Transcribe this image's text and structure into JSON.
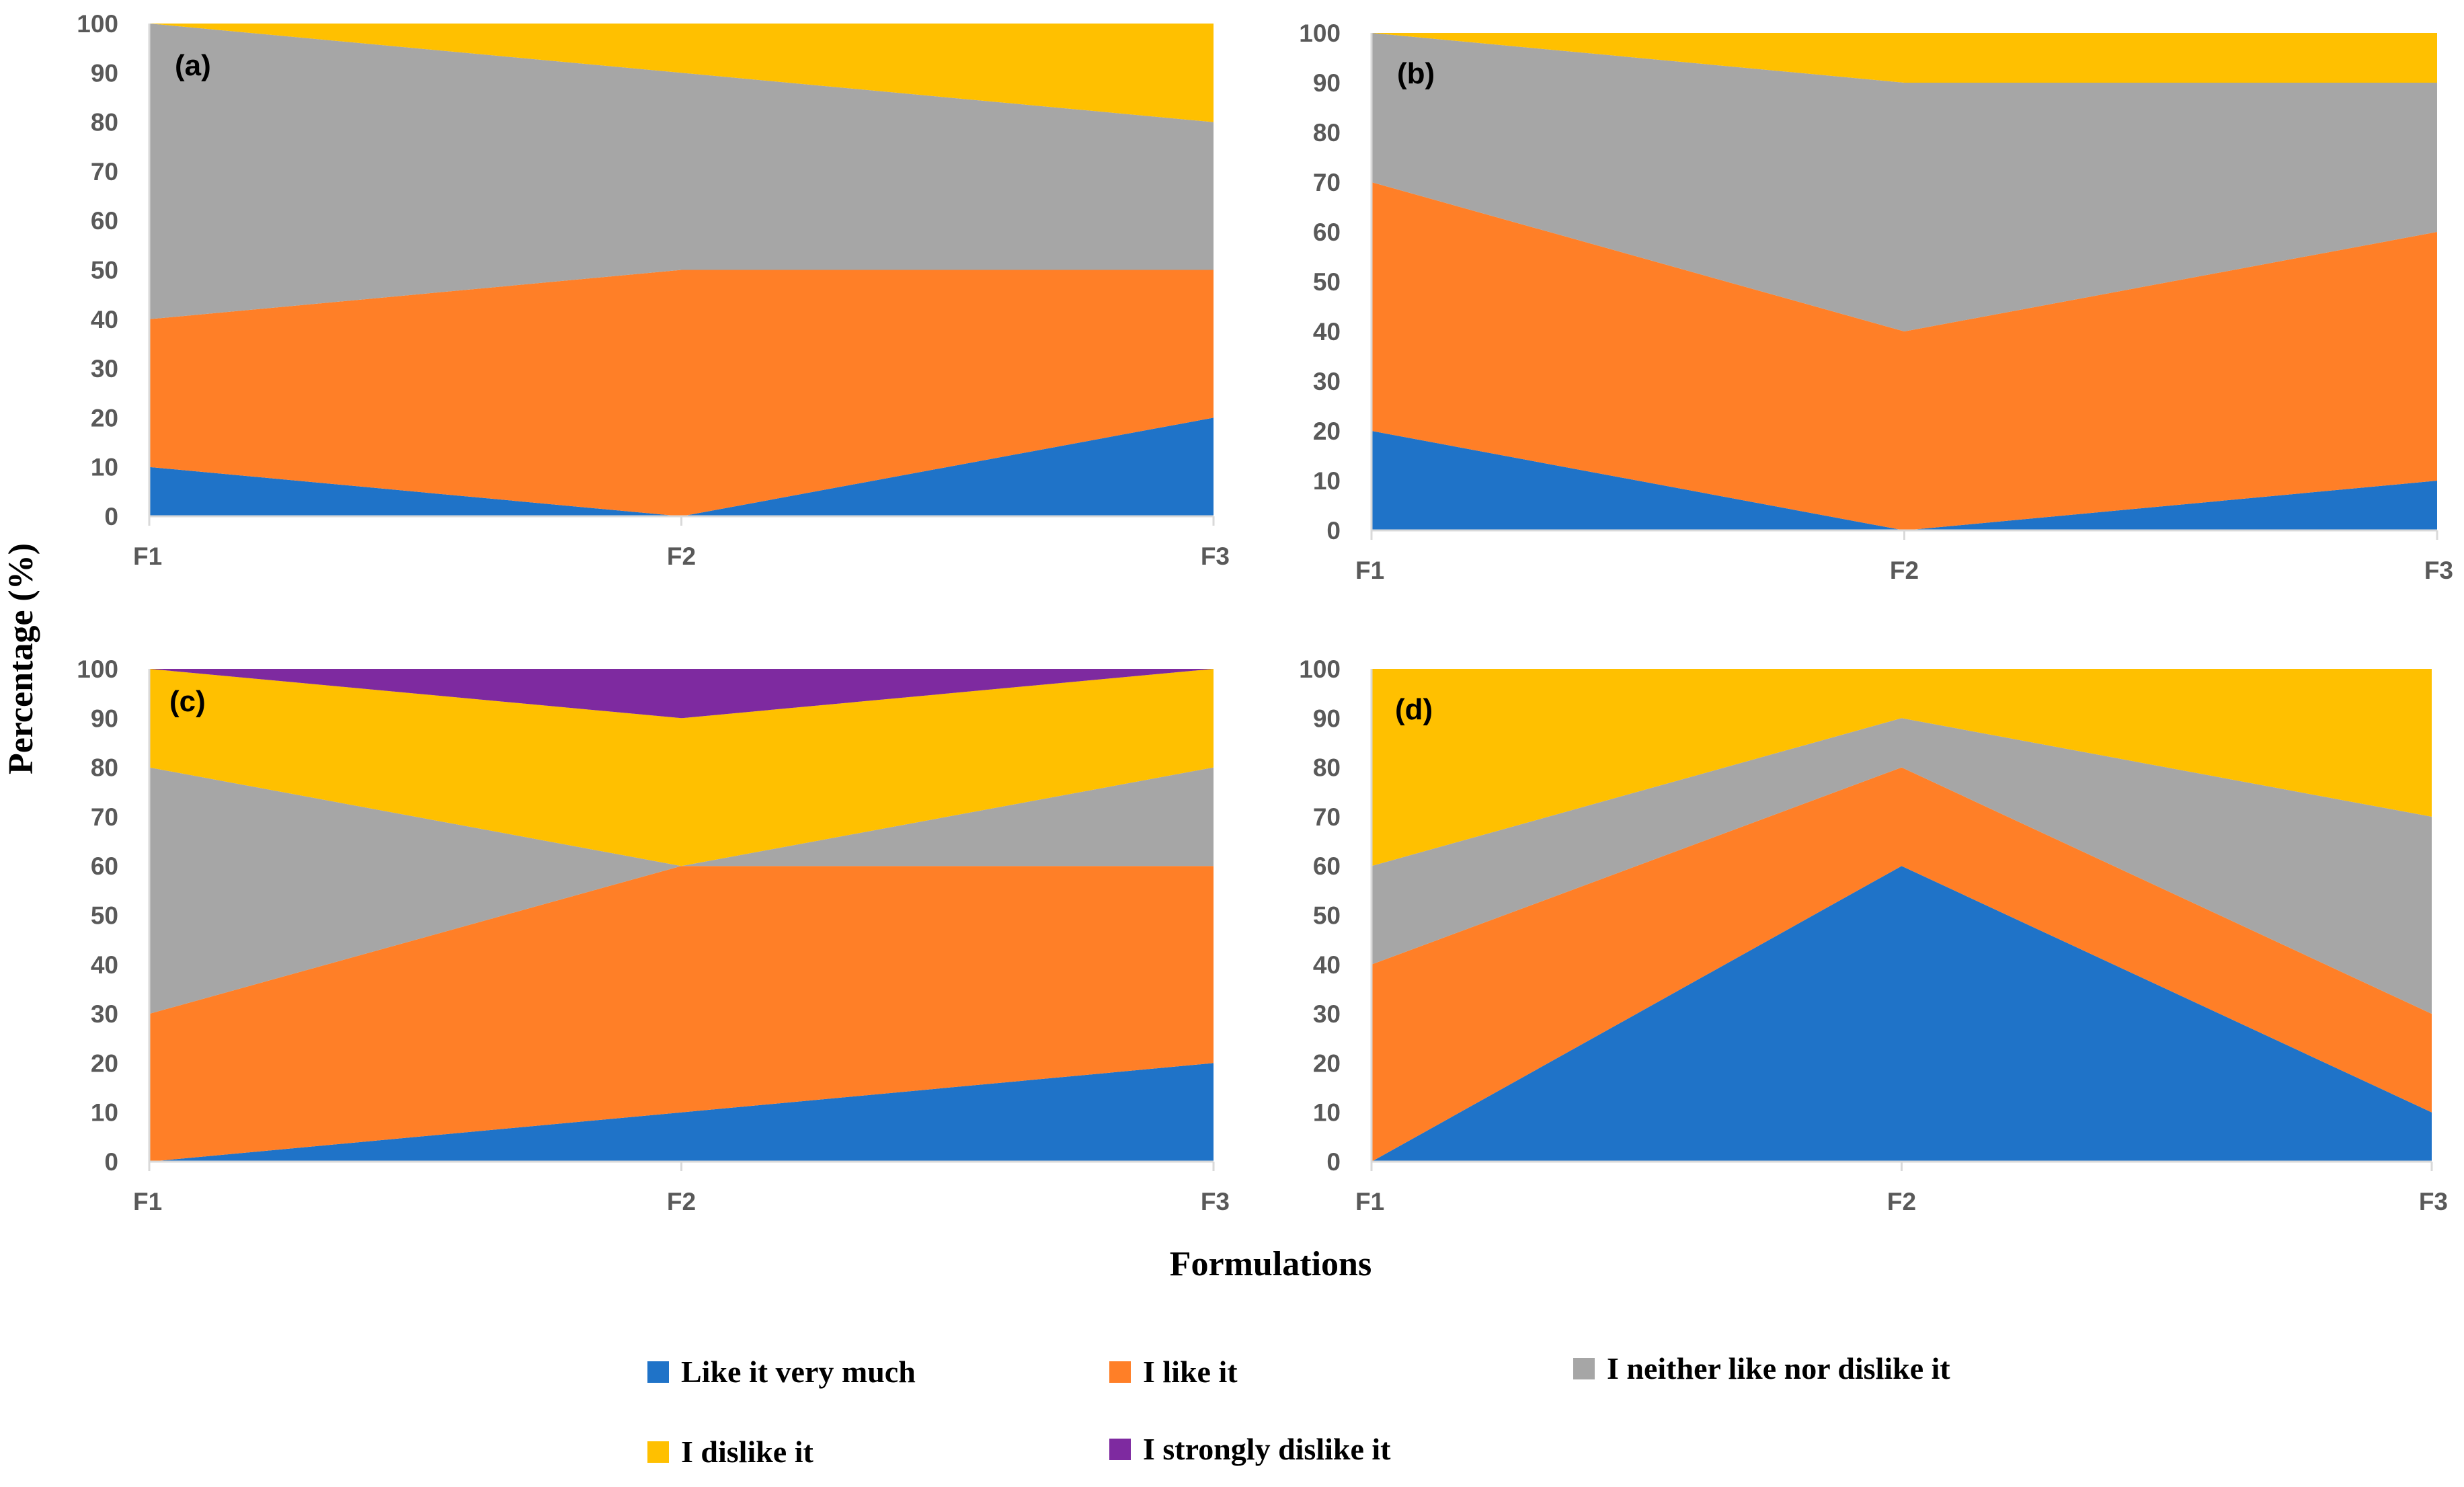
{
  "chart_data": {
    "type": "area",
    "stacked": true,
    "ylabel": "Percentage (%)",
    "xlabel": "Formulations",
    "categories": [
      "F1",
      "F2",
      "F3"
    ],
    "ylim": [
      0,
      100
    ],
    "y_ticks": [
      "0",
      "10",
      "20",
      "30",
      "40",
      "50",
      "60",
      "70",
      "80",
      "90",
      "100"
    ],
    "legend": [
      {
        "name": "Like it very much",
        "color": "#1F73C8"
      },
      {
        "name": "I like it",
        "color": "#FF7F27"
      },
      {
        "name": "I neither like nor dislike it",
        "color": "#A6A6A6"
      },
      {
        "name": "I dislike it",
        "color": "#FFC000"
      },
      {
        "name": "I strongly dislike it",
        "color": "#7E2AA0"
      }
    ],
    "panels": [
      {
        "label": "(a)",
        "series": [
          {
            "name": "Like it very much",
            "values": [
              10,
              0,
              20
            ]
          },
          {
            "name": "I like it",
            "values": [
              30,
              50,
              30
            ]
          },
          {
            "name": "I neither like nor dislike it",
            "values": [
              60,
              40,
              30
            ]
          },
          {
            "name": "I dislike it",
            "values": [
              0,
              10,
              20
            ]
          },
          {
            "name": "I strongly dislike it",
            "values": [
              0,
              0,
              0
            ]
          }
        ]
      },
      {
        "label": "(b)",
        "series": [
          {
            "name": "Like it very much",
            "values": [
              20,
              0,
              10
            ]
          },
          {
            "name": "I like it",
            "values": [
              50,
              40,
              50
            ]
          },
          {
            "name": "I neither like nor dislike it",
            "values": [
              30,
              50,
              30
            ]
          },
          {
            "name": "I dislike it",
            "values": [
              0,
              10,
              10
            ]
          },
          {
            "name": "I strongly dislike it",
            "values": [
              0,
              0,
              0
            ]
          }
        ]
      },
      {
        "label": "(c)",
        "series": [
          {
            "name": "Like it very much",
            "values": [
              0,
              10,
              20
            ]
          },
          {
            "name": "I like it",
            "values": [
              30,
              50,
              40
            ]
          },
          {
            "name": "I neither like nor dislike it",
            "values": [
              50,
              0,
              20
            ]
          },
          {
            "name": "I dislike it",
            "values": [
              20,
              30,
              20
            ]
          },
          {
            "name": "I strongly dislike it",
            "values": [
              0,
              10,
              0
            ]
          }
        ]
      },
      {
        "label": "(d)",
        "series": [
          {
            "name": "Like it very much",
            "values": [
              0,
              60,
              10
            ]
          },
          {
            "name": "I like it",
            "values": [
              40,
              20,
              20
            ]
          },
          {
            "name": "I neither like nor dislike it",
            "values": [
              20,
              10,
              40
            ]
          },
          {
            "name": "I dislike it",
            "values": [
              40,
              10,
              30
            ]
          },
          {
            "name": "I strongly dislike it",
            "values": [
              0,
              0,
              0
            ]
          }
        ]
      }
    ]
  }
}
